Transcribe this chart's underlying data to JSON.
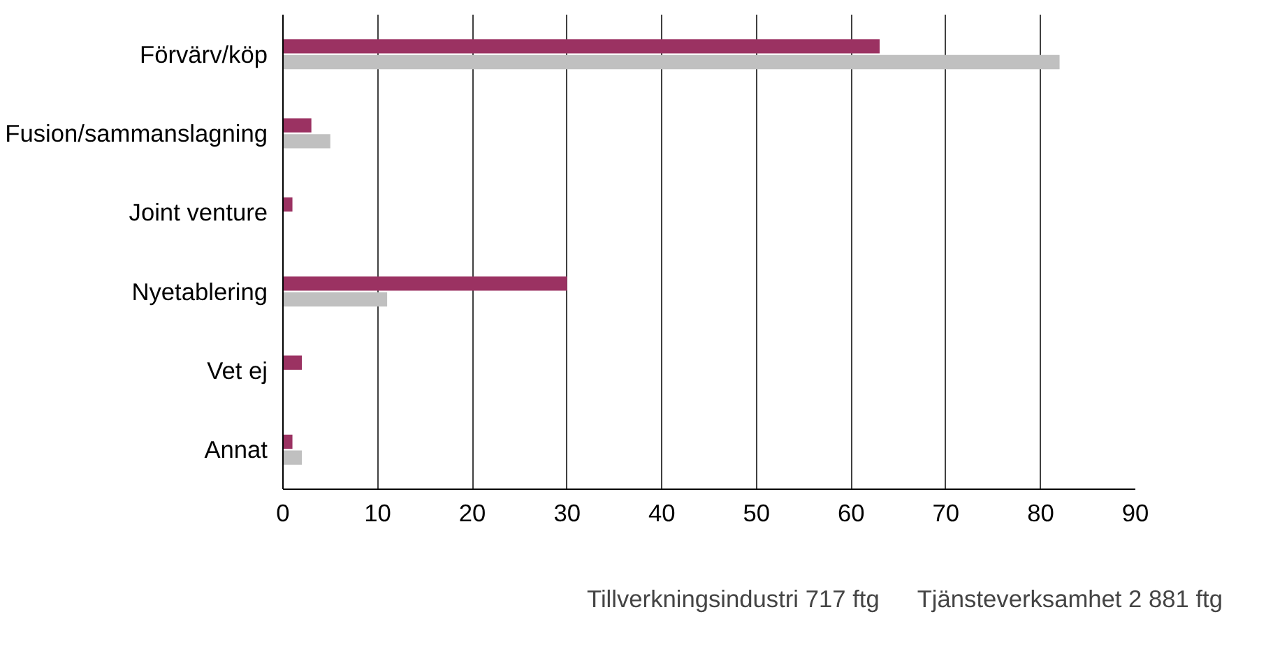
{
  "chart_data": {
    "type": "bar",
    "orientation": "horizontal",
    "categories": [
      "Förvärv/köp",
      "Fusion/sammanslagning",
      "Joint venture",
      "Nyetablering",
      "Vet ej",
      "Annat"
    ],
    "series": [
      {
        "name": "Tjänsteverksamhet 2 881 ftg",
        "color": "#9b3262",
        "values": [
          63,
          3,
          1,
          30,
          2,
          1
        ]
      },
      {
        "name": "Tillverkningsindustri 717 ftg",
        "color": "#c0c0c0",
        "values": [
          82,
          5,
          0,
          11,
          0,
          2
        ]
      }
    ],
    "xlim": [
      0,
      90
    ],
    "xticks": [
      0,
      10,
      20,
      30,
      40,
      50,
      60,
      70,
      80,
      90
    ],
    "grid": "x",
    "legend": "bottom"
  }
}
